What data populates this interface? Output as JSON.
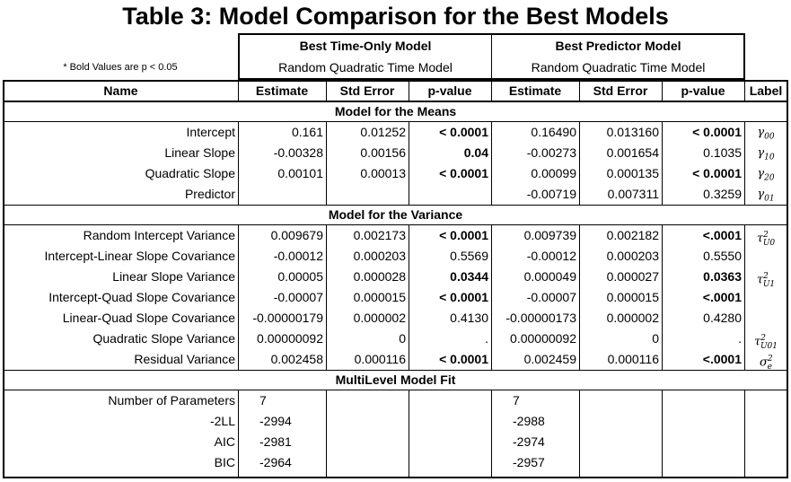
{
  "title": "Table 3: Model Comparison for the Best Models",
  "note": "* Bold Values are p < 0.05",
  "groups": [
    {
      "title": "Best Time-Only Model",
      "subtitle": "Random Quadratic Time Model"
    },
    {
      "title": "Best Predictor Model",
      "subtitle": "Random Quadratic Time Model"
    }
  ],
  "columns": [
    "Name",
    "Estimate",
    "Std Error",
    "p-value",
    "Estimate",
    "Std Error",
    "p-value",
    "Label"
  ],
  "sections": {
    "means": "Model for the Means",
    "variance": "Model for the Variance",
    "fit": "MultiLevel Model Fit"
  },
  "means_rows": [
    {
      "name": "Intercept",
      "e1": "0.161",
      "s1": "0.01252",
      "p1": "< 0.0001",
      "e2": "0.16490",
      "s2": "0.013160",
      "p2": "< 0.0001",
      "label": "γ00",
      "p1_bold": true,
      "p2_bold": true
    },
    {
      "name": "Linear Slope",
      "e1": "-0.00328",
      "s1": "0.00156",
      "p1": "0.04",
      "e2": "-0.00273",
      "s2": "0.001654",
      "p2": "0.1035",
      "label": "γ10",
      "p1_bold": true,
      "p2_bold": false
    },
    {
      "name": "Quadratic Slope",
      "e1": "0.00101",
      "s1": "0.00013",
      "p1": "< 0.0001",
      "e2": "0.00099",
      "s2": "0.000135",
      "p2": "< 0.0001",
      "label": "γ20",
      "p1_bold": true,
      "p2_bold": true
    },
    {
      "name": "Predictor",
      "e1": "",
      "s1": "",
      "p1": "",
      "e2": "-0.00719",
      "s2": "0.007311",
      "p2": "0.3259",
      "label": "γ01",
      "p1_bold": false,
      "p2_bold": false
    }
  ],
  "variance_rows": [
    {
      "name": "Random Intercept Variance",
      "e1": "0.009679",
      "s1": "0.002173",
      "p1": "< 0.0001",
      "e2": "0.009739",
      "s2": "0.002182",
      "p2": "<.0001",
      "label": "τ2U0",
      "p1_bold": true,
      "p2_bold": true,
      "p2_align": "center"
    },
    {
      "name": "Intercept-Linear Slope Covariance",
      "e1": "-0.00012",
      "s1": "0.000203",
      "p1": "0.5569",
      "e2": "-0.00012",
      "s2": "0.000203",
      "p2": "0.5550",
      "label": "",
      "p1_bold": false,
      "p2_bold": false,
      "p2_align": "center"
    },
    {
      "name": "Linear Slope Variance",
      "e1": "0.00005",
      "s1": "0.000028",
      "p1": "0.0344",
      "e2": "0.000049",
      "s2": "0.000027",
      "p2": "0.0363",
      "label": "τ2U1",
      "p1_bold": true,
      "p2_bold": true,
      "p2_align": "center"
    },
    {
      "name": "Intercept-Quad Slope Covariance",
      "e1": "-0.00007",
      "s1": "0.000015",
      "p1": "< 0.0001",
      "e2": "-0.00007",
      "s2": "0.000015",
      "p2": "<.0001",
      "label": "",
      "p1_bold": true,
      "p2_bold": true,
      "p2_align": "center"
    },
    {
      "name": "Linear-Quad Slope Covariance",
      "e1": "-0.00000179",
      "s1": "0.000002",
      "p1": "0.4130",
      "e2": "-0.00000173",
      "s2": "0.000002",
      "p2": "0.4280",
      "label": "",
      "p1_bold": false,
      "p2_bold": false,
      "p2_align": "center"
    },
    {
      "name": "Quadratic Slope Variance",
      "e1": "0.00000092",
      "s1": "0",
      "p1": ".",
      "e2": "0.00000092",
      "s2": "0",
      "p2": ".",
      "label": "τ2U01",
      "p1_bold": false,
      "p2_bold": false,
      "p2_align": "right"
    },
    {
      "name": "Residual Variance",
      "e1": "0.002458",
      "s1": "0.000116",
      "p1": "< 0.0001",
      "e2": "0.002459",
      "s2": "0.000116",
      "p2": "<.0001",
      "label": "σ2e",
      "p1_bold": true,
      "p2_bold": true,
      "p2_align": "center"
    }
  ],
  "fit_rows": [
    {
      "name": "Number of Parameters",
      "v1": "7",
      "v2": "7"
    },
    {
      "name": "-2LL",
      "v1": "-2994",
      "v2": "-2988"
    },
    {
      "name": "AIC",
      "v1": "-2981",
      "v2": "-2974"
    },
    {
      "name": "BIC",
      "v1": "-2964",
      "v2": "-2957"
    }
  ]
}
